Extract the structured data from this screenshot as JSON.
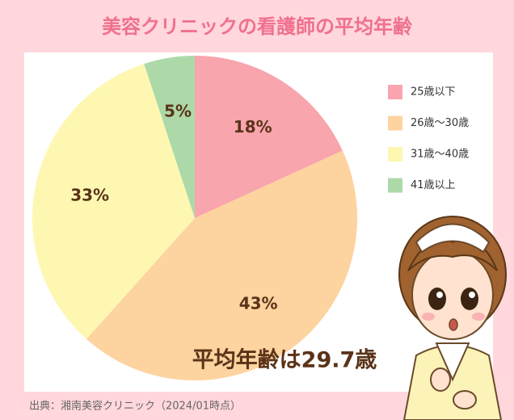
{
  "chart_data": {
    "type": "pie",
    "title": "美容クリニックの看護師の平均年齢",
    "categories": [
      "25歳以下",
      "26歳〜30歳",
      "31歳〜40歳",
      "41歳以上"
    ],
    "values": [
      18,
      43,
      33,
      5
    ],
    "value_labels": [
      "18%",
      "43%",
      "33%",
      "5%"
    ],
    "colors": [
      "#f8a5ad",
      "#fdd39f",
      "#fdf7b2",
      "#add9a9"
    ],
    "legend": "right",
    "annotation": "平均年齢は29.7歳",
    "source": "出典：湘南美容クリニック（2024/01時点）"
  }
}
